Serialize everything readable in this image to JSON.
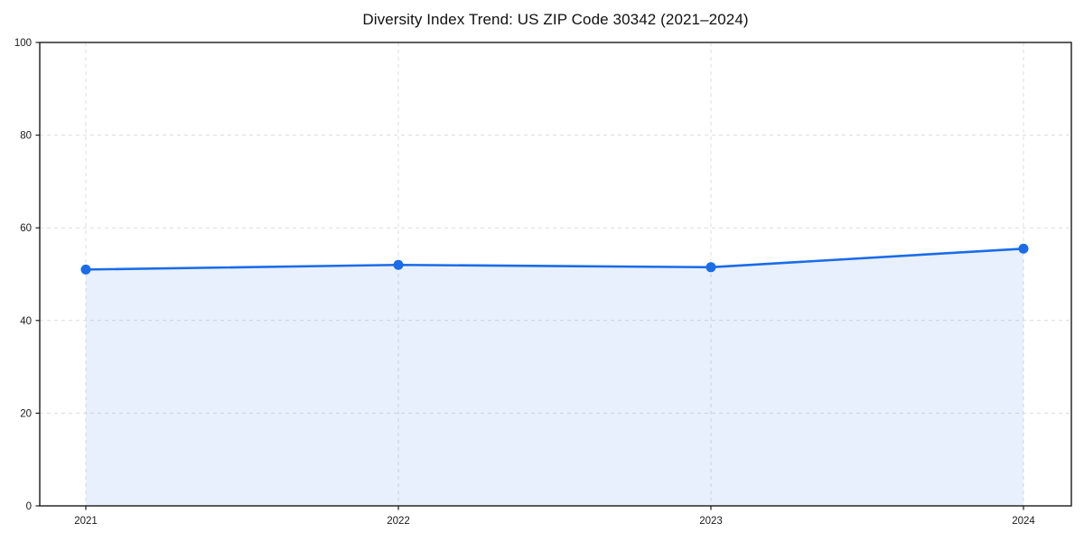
{
  "chart_data": {
    "type": "area",
    "title": "Diversity Index Trend: US ZIP Code 30342 (2021–2024)",
    "x": [
      "2021",
      "2022",
      "2023",
      "2024"
    ],
    "values": [
      51.0,
      52.0,
      51.5,
      55.5
    ],
    "ylim": [
      0,
      100
    ],
    "y_ticks": [
      0,
      20,
      40,
      60,
      80,
      100
    ],
    "xlabel": "",
    "ylabel": "",
    "grid": "dashed-both-axes",
    "legend": "none",
    "marker": "circle",
    "colors": {
      "line": "#1a6ce8",
      "marker": "#1a6ce8",
      "area_fill": "rgba(26,108,232,0.10)",
      "grid": "#dcdcdc",
      "spine": "#1a1a1a",
      "tick_text": "#1a1a1a",
      "background": "#ffffff"
    }
  }
}
